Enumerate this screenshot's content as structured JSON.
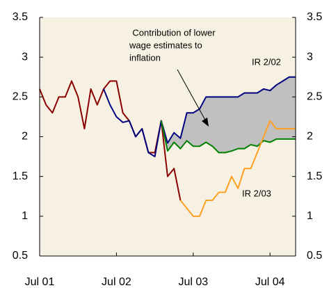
{
  "chart_data": {
    "type": "line",
    "categories": [
      "Jul 01",
      null,
      null,
      null,
      null,
      null,
      null,
      null,
      null,
      null,
      null,
      null,
      "Jul 02",
      null,
      null,
      null,
      null,
      null,
      null,
      null,
      null,
      null,
      null,
      null,
      "Jul 03",
      null,
      null,
      null,
      null,
      null,
      null,
      null,
      null,
      null,
      null,
      null,
      "Jul 04",
      null,
      null,
      null,
      null
    ],
    "series": [
      {
        "color": "#8b0000",
        "values": [
          2.6,
          2.4,
          2.3,
          2.5,
          2.5,
          2.7,
          2.5,
          2.1,
          2.6,
          2.4,
          2.6,
          2.7,
          2.7,
          2.3,
          2.2,
          2.0,
          2.1,
          1.8,
          1.8,
          2.2,
          1.5,
          1.6,
          1.2,
          null,
          null,
          null,
          null,
          null,
          null,
          null,
          null,
          null,
          null,
          null,
          null,
          null,
          null,
          null,
          null,
          null,
          null
        ]
      },
      {
        "color": "#000080",
        "values": [
          null,
          null,
          null,
          null,
          null,
          null,
          null,
          null,
          null,
          null,
          2.6,
          2.4,
          2.25,
          2.18,
          2.2,
          2.0,
          2.1,
          1.8,
          1.75,
          2.2,
          1.92,
          2.05,
          1.98,
          2.3,
          2.3,
          2.35,
          2.5,
          2.5,
          2.5,
          2.5,
          2.5,
          2.5,
          2.55,
          2.55,
          2.55,
          2.6,
          2.58,
          2.65,
          2.7,
          2.75,
          2.75
        ]
      },
      {
        "color": "#008000",
        "values": [
          null,
          null,
          null,
          null,
          null,
          null,
          null,
          null,
          null,
          null,
          null,
          null,
          null,
          null,
          null,
          null,
          null,
          null,
          null,
          2.2,
          1.82,
          1.93,
          1.85,
          1.95,
          1.88,
          1.88,
          1.93,
          1.88,
          1.8,
          1.8,
          1.82,
          1.85,
          1.85,
          1.9,
          1.88,
          1.95,
          1.93,
          1.97,
          1.97,
          1.97,
          1.97
        ]
      },
      {
        "color": "#ffa020",
        "values": [
          null,
          null,
          null,
          null,
          null,
          null,
          null,
          null,
          null,
          null,
          null,
          null,
          null,
          null,
          null,
          null,
          null,
          null,
          null,
          null,
          null,
          null,
          1.2,
          1.1,
          1.0,
          1.0,
          1.2,
          1.2,
          1.3,
          1.3,
          1.5,
          1.35,
          1.6,
          1.6,
          1.8,
          2.0,
          2.2,
          2.1,
          2.1,
          2.1,
          2.1
        ]
      }
    ],
    "shade_color": "#c0c0c0",
    "background": "#f7f1e3",
    "ylim": [
      0.5,
      3.5
    ],
    "yticks": [
      0.5,
      1,
      1.5,
      2,
      2.5,
      3,
      3.5
    ],
    "y2lim": [
      0.5,
      3.5
    ],
    "y2ticks": [
      0.5,
      1,
      1.5,
      2,
      2.5,
      3,
      3.5
    ],
    "annotations": [
      {
        "lines": [
          "Contribution of lower",
          "wage estimates to",
          "inflation"
        ]
      },
      {
        "lines": [
          "IR 2/02"
        ]
      },
      {
        "lines": [
          "IR 2/03"
        ]
      }
    ]
  }
}
